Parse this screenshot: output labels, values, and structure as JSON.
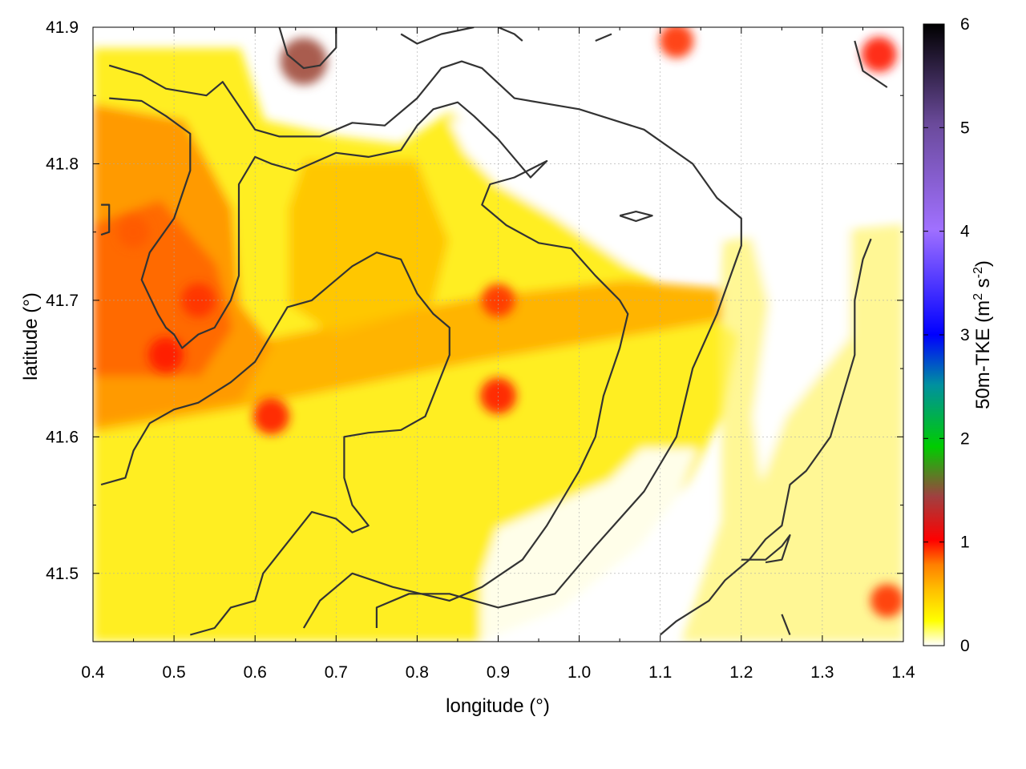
{
  "chart_data": {
    "type": "heatmap",
    "title": "",
    "xlabel": "longitude (°)",
    "ylabel": "latitude (°)",
    "xlim": [
      0.4,
      1.4
    ],
    "ylim": [
      41.45,
      41.9
    ],
    "xticks": [
      0.4,
      0.5,
      0.6,
      0.7,
      0.8,
      0.9,
      1.0,
      1.1,
      1.2,
      1.3,
      1.4
    ],
    "yticks": [
      41.5,
      41.6,
      41.7,
      41.8,
      41.9
    ],
    "xtick_labels": [
      "0.4",
      "0.5",
      "0.6",
      "0.7",
      "0.8",
      "0.9",
      "1.0",
      "1.1",
      "1.2",
      "1.3",
      "1.4"
    ],
    "ytick_labels": [
      "41.5",
      "41.6",
      "41.7",
      "41.8",
      "41.9"
    ],
    "grid": true,
    "colorbar": {
      "label_main": "50m-TKE (m",
      "label_sup1": "2",
      "label_mid": " s",
      "label_sup2": "-2",
      "label_end": ")",
      "range": [
        0,
        6
      ],
      "ticks": [
        0,
        1,
        2,
        3,
        4,
        5,
        6
      ],
      "tick_labels": [
        "0",
        "1",
        "2",
        "3",
        "4",
        "5",
        "6"
      ],
      "colors": [
        "#ffffff",
        "#ffff00",
        "#ffbf00",
        "#ff7000",
        "#ff0000",
        "#a04040",
        "#00cc00",
        "#0050ff",
        "#0000ff",
        "#a070ff",
        "#6a4a9a",
        "#000000"
      ]
    },
    "hotspots": [
      {
        "x": 0.49,
        "y": 41.66,
        "v": 1.0
      },
      {
        "x": 0.45,
        "y": 41.75,
        "v": 0.8
      },
      {
        "x": 0.53,
        "y": 41.7,
        "v": 0.95
      },
      {
        "x": 0.62,
        "y": 41.615,
        "v": 1.05
      },
      {
        "x": 0.66,
        "y": 41.875,
        "v": 1.6
      },
      {
        "x": 0.9,
        "y": 41.63,
        "v": 1.05
      },
      {
        "x": 0.9,
        "y": 41.7,
        "v": 0.9
      },
      {
        "x": 1.12,
        "y": 41.89,
        "v": 0.95
      },
      {
        "x": 1.37,
        "y": 41.88,
        "v": 1.0
      },
      {
        "x": 1.38,
        "y": 41.48,
        "v": 0.9
      }
    ],
    "contours": [
      [
        [
          0.42,
          41.872
        ],
        [
          0.46,
          41.865
        ],
        [
          0.49,
          41.855
        ],
        [
          0.54,
          41.85
        ],
        [
          0.56,
          41.86
        ],
        [
          0.6,
          41.825
        ],
        [
          0.63,
          41.82
        ],
        [
          0.68,
          41.82
        ],
        [
          0.72,
          41.83
        ],
        [
          0.76,
          41.828
        ],
        [
          0.8,
          41.848
        ],
        [
          0.83,
          41.87
        ],
        [
          0.855,
          41.875
        ],
        [
          0.88,
          41.87
        ],
        [
          0.92,
          41.848
        ],
        [
          1.0,
          41.84
        ],
        [
          1.08,
          41.825
        ],
        [
          1.14,
          41.8
        ],
        [
          1.17,
          41.775
        ],
        [
          1.2,
          41.76
        ],
        [
          1.2,
          41.74
        ],
        [
          1.17,
          41.69
        ],
        [
          1.14,
          41.65
        ],
        [
          1.12,
          41.6
        ],
        [
          1.08,
          41.56
        ],
        [
          1.02,
          41.52
        ],
        [
          0.97,
          41.485
        ],
        [
          0.9,
          41.475
        ],
        [
          0.84,
          41.485
        ],
        [
          0.79,
          41.485
        ],
        [
          0.75,
          41.475
        ],
        [
          0.75,
          41.46
        ]
      ],
      [
        [
          0.42,
          41.848
        ],
        [
          0.46,
          41.846
        ],
        [
          0.49,
          41.835
        ],
        [
          0.52,
          41.822
        ],
        [
          0.52,
          41.795
        ],
        [
          0.5,
          41.76
        ],
        [
          0.47,
          41.735
        ],
        [
          0.46,
          41.715
        ],
        [
          0.48,
          41.69
        ],
        [
          0.49,
          41.68
        ],
        [
          0.5,
          41.675
        ],
        [
          0.51,
          41.665
        ],
        [
          0.53,
          41.675
        ],
        [
          0.55,
          41.68
        ],
        [
          0.57,
          41.7
        ],
        [
          0.58,
          41.718
        ],
        [
          0.58,
          41.75
        ],
        [
          0.58,
          41.785
        ],
        [
          0.6,
          41.805
        ],
        [
          0.62,
          41.8
        ],
        [
          0.65,
          41.795
        ],
        [
          0.7,
          41.808
        ],
        [
          0.74,
          41.805
        ],
        [
          0.78,
          41.81
        ],
        [
          0.8,
          41.828
        ],
        [
          0.82,
          41.84
        ],
        [
          0.85,
          41.845
        ],
        [
          0.87,
          41.835
        ],
        [
          0.9,
          41.818
        ],
        [
          0.94,
          41.79
        ],
        [
          0.96,
          41.802
        ],
        [
          0.92,
          41.79
        ],
        [
          0.89,
          41.785
        ],
        [
          0.88,
          41.77
        ],
        [
          0.91,
          41.755
        ],
        [
          0.95,
          41.742
        ],
        [
          0.99,
          41.738
        ],
        [
          1.02,
          41.718
        ],
        [
          1.05,
          41.7
        ],
        [
          1.06,
          41.69
        ],
        [
          1.05,
          41.665
        ],
        [
          1.03,
          41.63
        ],
        [
          1.02,
          41.6
        ],
        [
          1.0,
          41.575
        ],
        [
          0.98,
          41.555
        ],
        [
          0.96,
          41.535
        ],
        [
          0.93,
          41.51
        ],
        [
          0.88,
          41.49
        ],
        [
          0.84,
          41.48
        ],
        [
          0.77,
          41.49
        ],
        [
          0.72,
          41.5
        ],
        [
          0.68,
          41.48
        ],
        [
          0.66,
          41.46
        ]
      ],
      [
        [
          0.41,
          41.565
        ],
        [
          0.44,
          41.57
        ],
        [
          0.45,
          41.59
        ],
        [
          0.47,
          41.61
        ],
        [
          0.5,
          41.62
        ],
        [
          0.53,
          41.625
        ],
        [
          0.57,
          41.64
        ],
        [
          0.6,
          41.655
        ],
        [
          0.62,
          41.675
        ],
        [
          0.64,
          41.695
        ],
        [
          0.67,
          41.7
        ],
        [
          0.69,
          41.71
        ],
        [
          0.72,
          41.725
        ],
        [
          0.75,
          41.735
        ],
        [
          0.78,
          41.73
        ],
        [
          0.8,
          41.705
        ],
        [
          0.82,
          41.69
        ],
        [
          0.84,
          41.68
        ],
        [
          0.84,
          41.66
        ],
        [
          0.82,
          41.63
        ],
        [
          0.81,
          41.615
        ],
        [
          0.78,
          41.605
        ],
        [
          0.74,
          41.603
        ],
        [
          0.71,
          41.6
        ],
        [
          0.71,
          41.57
        ],
        [
          0.72,
          41.55
        ],
        [
          0.74,
          41.535
        ],
        [
          0.72,
          41.53
        ],
        [
          0.7,
          41.54
        ],
        [
          0.67,
          41.545
        ],
        [
          0.65,
          41.53
        ],
        [
          0.63,
          41.515
        ],
        [
          0.61,
          41.5
        ],
        [
          0.6,
          41.48
        ],
        [
          0.57,
          41.475
        ],
        [
          0.55,
          41.46
        ],
        [
          0.52,
          41.455
        ]
      ],
      [
        [
          0.63,
          41.9
        ],
        [
          0.64,
          41.88
        ],
        [
          0.66,
          41.87
        ],
        [
          0.68,
          41.872
        ],
        [
          0.7,
          41.885
        ],
        [
          0.7,
          41.9
        ]
      ],
      [
        [
          0.78,
          41.895
        ],
        [
          0.8,
          41.888
        ],
        [
          0.83,
          41.895
        ],
        [
          0.87,
          41.9
        ]
      ],
      [
        [
          0.9,
          41.9
        ],
        [
          0.92,
          41.895
        ],
        [
          0.93,
          41.89
        ]
      ],
      [
        [
          1.02,
          41.89
        ],
        [
          1.04,
          41.895
        ]
      ],
      [
        [
          1.34,
          41.89
        ],
        [
          1.35,
          41.868
        ],
        [
          1.38,
          41.856
        ]
      ],
      [
        [
          1.36,
          41.745
        ],
        [
          1.35,
          41.73
        ],
        [
          1.34,
          41.7
        ],
        [
          1.34,
          41.66
        ],
        [
          1.32,
          41.62
        ],
        [
          1.31,
          41.6
        ],
        [
          1.28,
          41.575
        ],
        [
          1.26,
          41.565
        ],
        [
          1.25,
          41.535
        ],
        [
          1.23,
          41.525
        ],
        [
          1.21,
          41.51
        ],
        [
          1.18,
          41.495
        ],
        [
          1.16,
          41.48
        ],
        [
          1.12,
          41.465
        ],
        [
          1.1,
          41.455
        ]
      ],
      [
        [
          1.2,
          41.51
        ],
        [
          1.23,
          41.51
        ],
        [
          1.25,
          41.52
        ],
        [
          1.26,
          41.528
        ],
        [
          1.25,
          41.51
        ],
        [
          1.23,
          41.508
        ]
      ],
      [
        [
          1.05,
          41.762
        ],
        [
          1.07,
          41.765
        ],
        [
          1.09,
          41.762
        ],
        [
          1.07,
          41.758
        ],
        [
          1.05,
          41.762
        ]
      ],
      [
        [
          1.25,
          41.47
        ],
        [
          1.26,
          41.455
        ]
      ],
      [
        [
          0.41,
          41.77
        ],
        [
          0.42,
          41.77
        ],
        [
          0.42,
          41.75
        ],
        [
          0.41,
          41.748
        ]
      ]
    ]
  }
}
